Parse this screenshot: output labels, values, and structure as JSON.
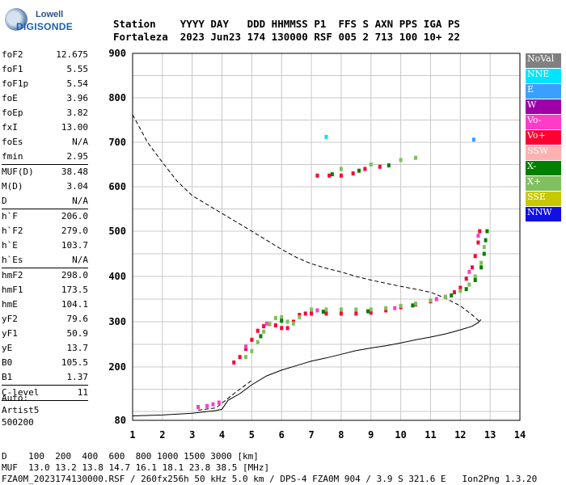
{
  "logo": {
    "top": "Lowell",
    "bottom": "DIGISONDE"
  },
  "header": {
    "line1": "Station    YYYY DAY   DDD HHMMSS P1  FFS S AXN PPS IGA PS",
    "line2": "Fortaleza  2023 Jun23 174 130000 RSF 005 2 713 100 10+ 22"
  },
  "params": [
    {
      "group": [
        {
          "label": "foF2",
          "value": "12.675"
        },
        {
          "label": "foF1",
          "value": "5.55"
        },
        {
          "label": "foF1p",
          "value": "5.54"
        },
        {
          "label": "foE",
          "value": "3.96"
        },
        {
          "label": "foEp",
          "value": "3.82"
        },
        {
          "label": "fxI",
          "value": "13.00"
        },
        {
          "label": "foEs",
          "value": "N/A"
        },
        {
          "label": "fmin",
          "value": "2.95"
        }
      ]
    },
    {
      "group": [
        {
          "label": "MUF(D)",
          "value": "38.48"
        },
        {
          "label": "M(D)",
          "value": "3.04"
        },
        {
          "label": "D",
          "value": "N/A"
        }
      ]
    },
    {
      "group": [
        {
          "label": "h`F",
          "value": "206.0"
        },
        {
          "label": "h`F2",
          "value": "279.0"
        },
        {
          "label": "h`E",
          "value": "103.7"
        },
        {
          "label": "h`Es",
          "value": "N/A"
        }
      ]
    },
    {
      "group": [
        {
          "label": "hmF2",
          "value": "298.0"
        },
        {
          "label": "hmF1",
          "value": "173.5"
        },
        {
          "label": "hmE",
          "value": "104.1"
        },
        {
          "label": "yF2",
          "value": "79.6"
        },
        {
          "label": "yF1",
          "value": "50.9"
        },
        {
          "label": "yE",
          "value": "13.7"
        },
        {
          "label": "B0",
          "value": "105.5"
        },
        {
          "label": "B1",
          "value": "1.37"
        }
      ]
    },
    {
      "group": [
        {
          "label": "C-level",
          "value": "11"
        }
      ]
    }
  ],
  "auto": {
    "line1": "Auto:",
    "line2": "Artist5",
    "line3": "500200"
  },
  "legend": [
    {
      "label": "NoVal",
      "color": "#808080",
      "text_color": "#ffffff"
    },
    {
      "label": "NNE",
      "color": "#00e5ff",
      "text_color": "#ffffff"
    },
    {
      "label": "E",
      "color": "#3aa0ff",
      "text_color": "#ffffff"
    },
    {
      "label": "W",
      "color": "#a000a8",
      "text_color": "#ffffff"
    },
    {
      "label": "Vo-",
      "color": "#ff3cc8",
      "text_color": "#ffffff"
    },
    {
      "label": "Vo+",
      "color": "#ff0033",
      "text_color": "#ffffff"
    },
    {
      "label": "SSW",
      "color": "#ffb0b0",
      "text_color": "#ffffff"
    },
    {
      "label": "X-",
      "color": "#008000",
      "text_color": "#ffffff"
    },
    {
      "label": "X+",
      "color": "#80c060",
      "text_color": "#ffffff"
    },
    {
      "label": "SSE",
      "color": "#c8c800",
      "text_color": "#ffffff"
    },
    {
      "label": "NNW",
      "color": "#1010e0",
      "text_color": "#ffffff"
    }
  ],
  "footer": {
    "line1": "D    100  200  400  600  800 1000 1500 3000 [km]",
    "line2": "MUF  13.0 13.2 13.8 14.7 16.1 18.1 23.8 38.5 [MHz]",
    "line3": "FZA0M_2023174130000.RSF / 260fx256h 50 kHz 5.0 km / DPS-4 FZA0M 904 / 3.9 S 321.6 E   Ion2Png 1.3.20"
  },
  "chart_data": {
    "type": "scatter",
    "xlim": [
      1,
      14
    ],
    "ylim": [
      80,
      900
    ],
    "x_ticks": [
      "1",
      "2",
      "3",
      "4",
      "5",
      "6",
      "7",
      "8",
      "9",
      "10",
      "11",
      "12",
      "13",
      "14"
    ],
    "y_ticks": [
      "80",
      "200",
      "300",
      "400",
      "500",
      "600",
      "700",
      "800",
      "900"
    ],
    "grid": true,
    "series": [
      {
        "name": "Vo+",
        "color": "#ff0033",
        "points": [
          [
            4.4,
            210
          ],
          [
            4.6,
            222
          ],
          [
            4.8,
            240
          ],
          [
            5.0,
            260
          ],
          [
            5.2,
            280
          ],
          [
            5.4,
            290
          ],
          [
            5.6,
            295
          ],
          [
            5.8,
            292
          ],
          [
            6.0,
            286
          ],
          [
            6.2,
            286
          ],
          [
            6.4,
            300
          ],
          [
            6.6,
            315
          ],
          [
            6.8,
            318
          ],
          [
            7.0,
            318
          ],
          [
            7.5,
            318
          ],
          [
            8.0,
            318
          ],
          [
            8.5,
            318
          ],
          [
            9.0,
            320
          ],
          [
            9.5,
            325
          ],
          [
            10.0,
            332
          ],
          [
            10.5,
            338
          ],
          [
            11.0,
            345
          ],
          [
            11.5,
            355
          ],
          [
            11.8,
            365
          ],
          [
            12.0,
            375
          ],
          [
            12.2,
            395
          ],
          [
            12.4,
            420
          ],
          [
            12.5,
            445
          ],
          [
            12.6,
            475
          ],
          [
            12.65,
            500
          ],
          [
            7.2,
            625
          ],
          [
            7.6,
            625
          ],
          [
            8.0,
            625
          ],
          [
            8.4,
            630
          ],
          [
            8.8,
            640
          ],
          [
            9.3,
            645
          ]
        ]
      },
      {
        "name": "Vo-",
        "color": "#ff3cc8",
        "points": [
          [
            3.2,
            110
          ],
          [
            3.5,
            112
          ],
          [
            3.7,
            116
          ],
          [
            3.9,
            120
          ],
          [
            4.8,
            245
          ],
          [
            5.5,
            296
          ],
          [
            7.2,
            325
          ],
          [
            9.8,
            330
          ],
          [
            11.2,
            350
          ],
          [
            12.3,
            410
          ],
          [
            12.6,
            490
          ]
        ]
      },
      {
        "name": "X+",
        "color": "#80c060",
        "points": [
          [
            4.8,
            222
          ],
          [
            5.0,
            235
          ],
          [
            5.2,
            255
          ],
          [
            5.4,
            278
          ],
          [
            5.6,
            296
          ],
          [
            5.8,
            308
          ],
          [
            6.0,
            310
          ],
          [
            6.2,
            300
          ],
          [
            6.4,
            296
          ],
          [
            6.6,
            310
          ],
          [
            7.0,
            327
          ],
          [
            7.5,
            327
          ],
          [
            8.0,
            327
          ],
          [
            8.5,
            327
          ],
          [
            9.0,
            327
          ],
          [
            9.5,
            330
          ],
          [
            10.0,
            335
          ],
          [
            10.5,
            340
          ],
          [
            11.0,
            347
          ],
          [
            11.5,
            355
          ],
          [
            12.0,
            368
          ],
          [
            12.3,
            382
          ],
          [
            12.5,
            400
          ],
          [
            12.7,
            430
          ],
          [
            12.8,
            465
          ],
          [
            12.9,
            500
          ],
          [
            8.0,
            640
          ],
          [
            9.0,
            650
          ],
          [
            10.0,
            660
          ],
          [
            10.5,
            665
          ]
        ]
      },
      {
        "name": "X-",
        "color": "#008000",
        "points": [
          [
            5.3,
            268
          ],
          [
            6.0,
            302
          ],
          [
            7.4,
            322
          ],
          [
            8.9,
            323
          ],
          [
            10.4,
            336
          ],
          [
            11.7,
            358
          ],
          [
            12.2,
            372
          ],
          [
            12.5,
            392
          ],
          [
            12.7,
            420
          ],
          [
            12.8,
            450
          ],
          [
            12.85,
            480
          ],
          [
            12.9,
            500
          ],
          [
            7.7,
            628
          ],
          [
            8.6,
            636
          ],
          [
            9.6,
            648
          ]
        ]
      },
      {
        "name": "NNE",
        "color": "#00e5ff",
        "points": [
          [
            7.5,
            712
          ]
        ]
      },
      {
        "name": "E",
        "color": "#3aa0ff",
        "points": [
          [
            12.45,
            706
          ]
        ]
      }
    ],
    "curves": [
      {
        "style": "dashed",
        "points": [
          [
            1.0,
            762
          ],
          [
            1.5,
            700
          ],
          [
            2.0,
            655
          ],
          [
            2.5,
            612
          ],
          [
            3.0,
            580
          ],
          [
            3.5,
            560
          ],
          [
            4.0,
            540
          ],
          [
            4.5,
            520
          ],
          [
            5.0,
            500
          ],
          [
            5.5,
            480
          ],
          [
            6.0,
            460
          ],
          [
            6.5,
            442
          ],
          [
            7.0,
            428
          ],
          [
            7.5,
            418
          ],
          [
            8.0,
            410
          ],
          [
            8.5,
            400
          ],
          [
            9.0,
            392
          ],
          [
            9.5,
            385
          ],
          [
            10.0,
            378
          ],
          [
            10.5,
            372
          ],
          [
            11.0,
            365
          ],
          [
            11.5,
            352
          ],
          [
            12.0,
            335
          ],
          [
            12.4,
            315
          ],
          [
            12.65,
            300
          ]
        ]
      },
      {
        "style": "dashed",
        "points": [
          [
            3.2,
            103
          ],
          [
            3.8,
            108
          ],
          [
            4.4,
            140
          ],
          [
            5.0,
            170
          ]
        ]
      },
      {
        "style": "solid",
        "points": [
          [
            1.0,
            90
          ],
          [
            2.0,
            92
          ],
          [
            3.0,
            96
          ],
          [
            3.8,
            102
          ],
          [
            4.0,
            105
          ],
          [
            4.2,
            125
          ],
          [
            4.6,
            140
          ],
          [
            5.0,
            160
          ],
          [
            5.5,
            180
          ],
          [
            6.0,
            193
          ],
          [
            6.5,
            203
          ],
          [
            7.0,
            213
          ],
          [
            7.5,
            220
          ],
          [
            8.0,
            228
          ],
          [
            8.5,
            236
          ],
          [
            9.0,
            242
          ],
          [
            9.5,
            247
          ],
          [
            10.0,
            253
          ],
          [
            10.5,
            260
          ],
          [
            11.0,
            266
          ],
          [
            11.5,
            273
          ],
          [
            12.0,
            282
          ],
          [
            12.4,
            290
          ],
          [
            12.6,
            298
          ],
          [
            12.7,
            305
          ]
        ]
      }
    ]
  }
}
